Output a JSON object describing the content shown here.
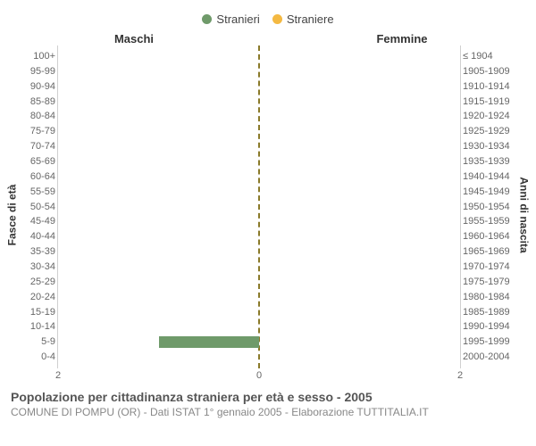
{
  "legend": {
    "series": [
      {
        "label": "Stranieri",
        "color": "#6f9a6a"
      },
      {
        "label": "Straniere",
        "color": "#f4b942"
      }
    ]
  },
  "subtitles": {
    "left": "Maschi",
    "right": "Femmine"
  },
  "axis_titles": {
    "left": "Fasce di età",
    "right": "Anni di nascita"
  },
  "age_groups": [
    "100+",
    "95-99",
    "90-94",
    "85-89",
    "80-84",
    "75-79",
    "70-74",
    "65-69",
    "60-64",
    "55-59",
    "50-54",
    "45-49",
    "40-44",
    "35-39",
    "30-34",
    "25-29",
    "20-24",
    "15-19",
    "10-14",
    "5-9",
    "0-4"
  ],
  "birth_years": [
    "≤ 1904",
    "1905-1909",
    "1910-1914",
    "1915-1919",
    "1920-1924",
    "1925-1929",
    "1930-1934",
    "1935-1939",
    "1940-1944",
    "1945-1949",
    "1950-1954",
    "1955-1959",
    "1960-1964",
    "1965-1969",
    "1970-1974",
    "1975-1979",
    "1980-1984",
    "1985-1989",
    "1990-1994",
    "1995-1999",
    "2000-2004"
  ],
  "chart": {
    "type": "population-pyramid",
    "x_max": 2,
    "x_ticks": [
      2,
      0,
      2
    ],
    "center_line_color": "#8a7a2a",
    "grid_color": "#e6e6e6",
    "background_color": "#ffffff",
    "male_color": "#6f9a6a",
    "female_color": "#f4b942",
    "male_values": [
      0,
      0,
      0,
      0,
      0,
      0,
      0,
      0,
      0,
      0,
      0,
      0,
      0,
      0,
      0,
      0,
      0,
      0,
      0,
      1,
      0
    ],
    "female_values": [
      0,
      0,
      0,
      0,
      0,
      0,
      0,
      0,
      0,
      0,
      0,
      0,
      0,
      0,
      0,
      0,
      0,
      0,
      0,
      0,
      0
    ]
  },
  "footer": {
    "title": "Popolazione per cittadinanza straniera per età e sesso - 2005",
    "source": "COMUNE DI POMPU (OR) - Dati ISTAT 1° gennaio 2005 - Elaborazione TUTTITALIA.IT"
  }
}
